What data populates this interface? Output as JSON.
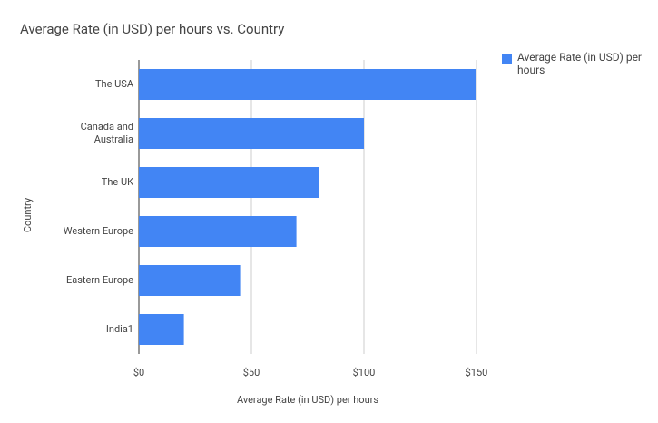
{
  "chart_data": {
    "type": "bar",
    "orientation": "horizontal",
    "title": "Average Rate (in USD) per hours vs. Country",
    "x_label": "Average Rate (in USD) per hours",
    "y_label": "Country",
    "categories": [
      "The USA",
      "Canada and Australia",
      "The UK",
      "Western Europe",
      "Eastern Europe",
      "India1"
    ],
    "series": [
      {
        "name": "Average Rate (in USD) per hours",
        "color": "#4285f4",
        "values": [
          150,
          100,
          80,
          70,
          45,
          20
        ]
      }
    ],
    "xlim": [
      0,
      150
    ],
    "xticks": [
      {
        "value": 0,
        "label": "$0"
      },
      {
        "value": 50,
        "label": "$50"
      },
      {
        "value": 100,
        "label": "$100"
      },
      {
        "value": 150,
        "label": "$150"
      }
    ],
    "grid": true,
    "legend": "right"
  }
}
